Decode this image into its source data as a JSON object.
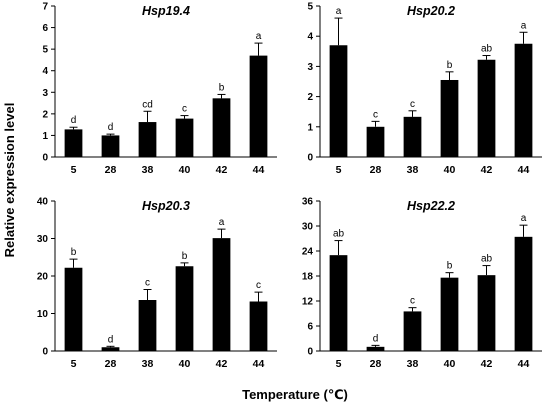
{
  "figure": {
    "ylabel": "Relative expression level",
    "xlabel": "Temperature (℃)"
  },
  "chart_data": [
    {
      "type": "bar",
      "title": "Hsp19.4",
      "categories": [
        "5",
        "28",
        "38",
        "40",
        "42",
        "44"
      ],
      "values": [
        1.28,
        1.0,
        1.62,
        1.78,
        2.72,
        4.7
      ],
      "errors": [
        0.1,
        0.06,
        0.5,
        0.14,
        0.18,
        0.58
      ],
      "significance": [
        "d",
        "d",
        "cd",
        "c",
        "b",
        "a"
      ],
      "ylim": [
        0,
        7
      ],
      "yticks": [
        0,
        1,
        2,
        3,
        4,
        5,
        6,
        7
      ],
      "color": "#000000"
    },
    {
      "type": "bar",
      "title": "Hsp20.2",
      "categories": [
        "5",
        "28",
        "38",
        "40",
        "42",
        "44"
      ],
      "values": [
        3.7,
        1.0,
        1.33,
        2.55,
        3.22,
        3.75
      ],
      "errors": [
        0.9,
        0.18,
        0.2,
        0.27,
        0.14,
        0.38
      ],
      "significance": [
        "a",
        "c",
        "c",
        "b",
        "ab",
        "a"
      ],
      "ylim": [
        0,
        5
      ],
      "yticks": [
        0,
        1,
        2,
        3,
        4,
        5
      ],
      "color": "#000000"
    },
    {
      "type": "bar",
      "title": "Hsp20.3",
      "categories": [
        "5",
        "28",
        "38",
        "40",
        "42",
        "44"
      ],
      "values": [
        22.2,
        1.0,
        13.6,
        22.6,
        30.1,
        13.2
      ],
      "errors": [
        2.3,
        0.25,
        2.8,
        0.9,
        2.4,
        2.5
      ],
      "significance": [
        "b",
        "d",
        "c",
        "b",
        "a",
        "c"
      ],
      "ylim": [
        0,
        40
      ],
      "yticks": [
        0,
        10,
        20,
        30,
        40
      ],
      "color": "#000000"
    },
    {
      "type": "bar",
      "title": "Hsp22.2",
      "categories": [
        "5",
        "28",
        "38",
        "40",
        "42",
        "44"
      ],
      "values": [
        23.0,
        1.0,
        9.5,
        17.6,
        18.2,
        27.4
      ],
      "errors": [
        3.5,
        0.35,
        0.9,
        1.2,
        2.3,
        2.8
      ],
      "significance": [
        "ab",
        "d",
        "c",
        "b",
        "ab",
        "a"
      ],
      "ylim": [
        0,
        36
      ],
      "yticks": [
        0,
        6,
        12,
        18,
        24,
        30,
        36
      ],
      "color": "#000000"
    }
  ]
}
